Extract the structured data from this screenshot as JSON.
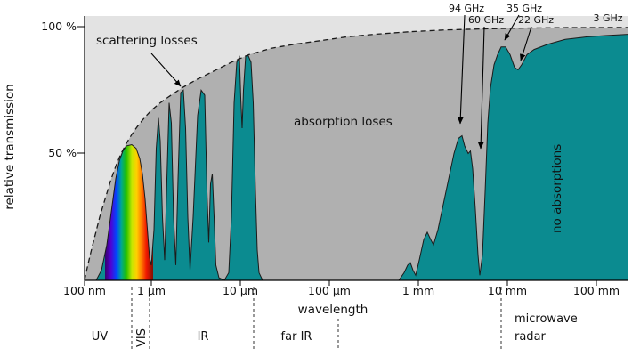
{
  "chart_data": {
    "type": "area",
    "title": "",
    "ylabel": "relative transmission",
    "xlabel": "wavelength",
    "y_tick_labels": [
      "100 %",
      "50 %"
    ],
    "x_tick_labels": [
      "100 nm",
      "1 µm",
      "10 µm",
      "100 µm",
      "1 mm",
      "10 mm",
      "100 mm"
    ],
    "x_scale": "logarithmic wavelength, points given as [log10(wavelength in µm), transmission %]",
    "ylim": [
      0,
      100
    ],
    "grid": false,
    "region_labels": {
      "scattering": "scattering losses",
      "absorption": "absorption loses",
      "no_absorption": "no absorptions"
    },
    "frequency_annotations": [
      "94 GHz",
      "60 GHz",
      "35 GHz",
      "22 GHz",
      "3 GHz"
    ],
    "band_labels": {
      "uv": "UV",
      "vis": "VIS",
      "ir": "IR",
      "far_ir": "far IR",
      "microwave": "microwave",
      "radar": "radar"
    },
    "colors": {
      "scattering_region": "#e3e3e3",
      "absorption_region": "#b0b0b0",
      "transmission_fill": "#0b8b90",
      "outline": "#1b1b1b"
    },
    "series": [
      {
        "name": "scattering-limited maximum transmission (dashed envelope)",
        "points": [
          [
            -0.75,
            0
          ],
          [
            -0.72,
            5
          ],
          [
            -0.68,
            11
          ],
          [
            -0.63,
            18
          ],
          [
            -0.58,
            25
          ],
          [
            -0.52,
            32
          ],
          [
            -0.46,
            39
          ],
          [
            -0.4,
            45
          ],
          [
            -0.34,
            50
          ],
          [
            -0.28,
            54
          ],
          [
            -0.22,
            57.5
          ],
          [
            -0.15,
            61
          ],
          [
            -0.08,
            64
          ],
          [
            0,
            67
          ],
          [
            0.1,
            70
          ],
          [
            0.2,
            72.5
          ],
          [
            0.35,
            76
          ],
          [
            0.5,
            79
          ],
          [
            0.7,
            82.5
          ],
          [
            0.9,
            86
          ],
          [
            1.1,
            89
          ],
          [
            1.35,
            91.5
          ],
          [
            1.6,
            93
          ],
          [
            1.9,
            94.5
          ],
          [
            2.2,
            96
          ],
          [
            2.5,
            97
          ],
          [
            2.9,
            98
          ],
          [
            3.3,
            98.7
          ],
          [
            3.7,
            99.1
          ],
          [
            4.1,
            99.4
          ],
          [
            4.6,
            99.6
          ],
          [
            5.35,
            99.7
          ]
        ]
      },
      {
        "name": "atmospheric transmission windows",
        "points": [
          [
            -0.75,
            0
          ],
          [
            -0.62,
            0
          ],
          [
            -0.56,
            4
          ],
          [
            -0.5,
            14
          ],
          [
            -0.45,
            27
          ],
          [
            -0.4,
            40
          ],
          [
            -0.36,
            47
          ],
          [
            -0.32,
            51
          ],
          [
            -0.28,
            53
          ],
          [
            -0.22,
            53.5
          ],
          [
            -0.17,
            52
          ],
          [
            -0.13,
            48
          ],
          [
            -0.1,
            42
          ],
          [
            -0.07,
            32
          ],
          [
            -0.04,
            18
          ],
          [
            -0.02,
            9
          ],
          [
            0,
            6
          ],
          [
            0.03,
            20
          ],
          [
            0.055,
            52
          ],
          [
            0.08,
            64
          ],
          [
            0.1,
            55
          ],
          [
            0.125,
            25
          ],
          [
            0.15,
            8
          ],
          [
            0.175,
            40
          ],
          [
            0.2,
            70
          ],
          [
            0.225,
            62
          ],
          [
            0.25,
            25
          ],
          [
            0.275,
            6
          ],
          [
            0.3,
            40
          ],
          [
            0.33,
            74
          ],
          [
            0.36,
            75
          ],
          [
            0.385,
            60
          ],
          [
            0.41,
            25
          ],
          [
            0.435,
            4
          ],
          [
            0.47,
            25
          ],
          [
            0.52,
            65
          ],
          [
            0.56,
            75
          ],
          [
            0.6,
            73
          ],
          [
            0.625,
            35
          ],
          [
            0.645,
            15
          ],
          [
            0.665,
            38
          ],
          [
            0.685,
            42
          ],
          [
            0.705,
            25
          ],
          [
            0.725,
            6
          ],
          [
            0.76,
            1
          ],
          [
            0.82,
            0
          ],
          [
            0.87,
            3
          ],
          [
            0.9,
            25
          ],
          [
            0.93,
            70
          ],
          [
            0.96,
            86
          ],
          [
            0.99,
            88
          ],
          [
            1.005,
            72
          ],
          [
            1.02,
            60
          ],
          [
            1.035,
            75
          ],
          [
            1.06,
            88.5
          ],
          [
            1.09,
            88.5
          ],
          [
            1.12,
            86
          ],
          [
            1.145,
            70
          ],
          [
            1.17,
            35
          ],
          [
            1.19,
            12
          ],
          [
            1.21,
            3
          ],
          [
            1.25,
            0
          ],
          [
            2.78,
            0
          ],
          [
            2.84,
            3
          ],
          [
            2.88,
            6
          ],
          [
            2.91,
            7
          ],
          [
            2.94,
            4
          ],
          [
            2.97,
            2
          ],
          [
            3.01,
            8
          ],
          [
            3.06,
            16
          ],
          [
            3.1,
            19
          ],
          [
            3.14,
            16
          ],
          [
            3.17,
            14
          ],
          [
            3.22,
            20
          ],
          [
            3.28,
            30
          ],
          [
            3.34,
            40
          ],
          [
            3.4,
            50
          ],
          [
            3.45,
            56
          ],
          [
            3.49,
            57
          ],
          [
            3.52,
            53
          ],
          [
            3.56,
            50
          ],
          [
            3.585,
            51
          ],
          [
            3.61,
            44
          ],
          [
            3.64,
            28
          ],
          [
            3.67,
            10
          ],
          [
            3.69,
            2
          ],
          [
            3.72,
            10
          ],
          [
            3.75,
            35
          ],
          [
            3.78,
            62
          ],
          [
            3.81,
            76
          ],
          [
            3.85,
            85
          ],
          [
            3.89,
            89
          ],
          [
            3.93,
            92
          ],
          [
            3.98,
            92
          ],
          [
            4.03,
            89
          ],
          [
            4.08,
            84
          ],
          [
            4.12,
            83
          ],
          [
            4.16,
            85
          ],
          [
            4.22,
            89
          ],
          [
            4.3,
            91
          ],
          [
            4.45,
            93
          ],
          [
            4.65,
            95
          ],
          [
            4.9,
            96
          ],
          [
            5.1,
            96.5
          ],
          [
            5.35,
            97
          ]
        ]
      }
    ]
  }
}
